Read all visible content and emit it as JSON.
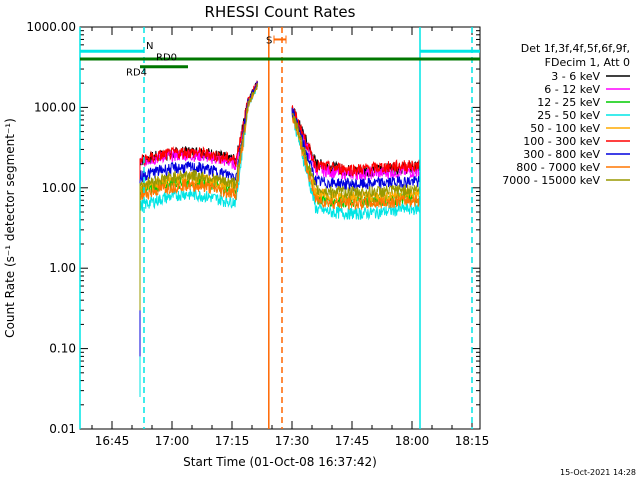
{
  "chart_data": {
    "type": "line",
    "title": "RHESSI Count Rates",
    "xlabel": "Start Time (01-Oct-08 16:37:42)",
    "ylabel": "Count Rate (s⁻¹ detector segment⁻¹)",
    "y_scale": "log",
    "ylim": [
      0.01,
      1000
    ],
    "xlim_minutes": [
      -1,
      99
    ],
    "y_ticks": [
      {
        "v": 1000,
        "label": "1000.00"
      },
      {
        "v": 100,
        "label": "100.00"
      },
      {
        "v": 10,
        "label": "10.00"
      },
      {
        "v": 1,
        "label": "1.00"
      },
      {
        "v": 0.1,
        "label": "0.10"
      },
      {
        "v": 0.01,
        "label": "0.01"
      }
    ],
    "x_ticks": [
      {
        "t": 7,
        "label": "16:45"
      },
      {
        "t": 22,
        "label": "17:00"
      },
      {
        "t": 37,
        "label": "17:15"
      },
      {
        "t": 52,
        "label": "17:30"
      },
      {
        "t": 67,
        "label": "17:45"
      },
      {
        "t": 82,
        "label": "18:00"
      },
      {
        "t": 97,
        "label": "18:15"
      }
    ],
    "legend": {
      "placement": "right",
      "header": [
        "Det 1f,3f,4f,5f,6f,9f,",
        "FDecim 1, Att 0"
      ]
    },
    "series": [
      {
        "name": "3 - 6 keV",
        "color": "#000000",
        "pre": [
          [
            14,
            22
          ],
          [
            20,
            26
          ],
          [
            25,
            28
          ],
          [
            30,
            28
          ],
          [
            35,
            24
          ],
          [
            38,
            22
          ]
        ],
        "post": [
          [
            58,
            20
          ],
          [
            62,
            18
          ],
          [
            68,
            16
          ],
          [
            74,
            17
          ],
          [
            80,
            18
          ],
          [
            84,
            18
          ]
        ],
        "start": 0.3,
        "peak": 220
      },
      {
        "name": "6 - 12 keV",
        "color": "#ff00ff",
        "pre": [
          [
            14,
            21
          ],
          [
            20,
            25
          ],
          [
            25,
            26
          ],
          [
            30,
            25
          ],
          [
            35,
            22
          ],
          [
            38,
            20
          ]
        ],
        "post": [
          [
            58,
            17
          ],
          [
            62,
            16
          ],
          [
            68,
            15
          ],
          [
            74,
            15.5
          ],
          [
            80,
            16
          ],
          [
            84,
            16
          ]
        ],
        "start": 0.3,
        "peak": 210
      },
      {
        "name": "12 - 25 keV",
        "color": "#00cc00",
        "pre": [
          [
            14,
            9
          ],
          [
            20,
            11
          ],
          [
            25,
            12
          ],
          [
            30,
            12
          ],
          [
            35,
            10
          ],
          [
            38,
            9.5
          ]
        ],
        "post": [
          [
            58,
            7.5
          ],
          [
            62,
            7
          ],
          [
            68,
            6.8
          ],
          [
            74,
            7
          ],
          [
            80,
            7.5
          ],
          [
            84,
            7.5
          ]
        ],
        "start": 0.3,
        "peak": 200
      },
      {
        "name": "25 - 50 keV",
        "color": "#00e5e5",
        "pre": [
          [
            14,
            6
          ],
          [
            20,
            7.5
          ],
          [
            25,
            8.5
          ],
          [
            30,
            8
          ],
          [
            35,
            7
          ],
          [
            38,
            6.8
          ]
        ],
        "post": [
          [
            58,
            5.5
          ],
          [
            62,
            5
          ],
          [
            68,
            4.8
          ],
          [
            74,
            5
          ],
          [
            80,
            5.5
          ],
          [
            84,
            5.5
          ]
        ],
        "start": 0.025,
        "peak": 190
      },
      {
        "name": "50 - 100 keV",
        "color": "#ffaa00",
        "pre": [
          [
            14,
            10
          ],
          [
            20,
            12
          ],
          [
            25,
            13.5
          ],
          [
            30,
            13
          ],
          [
            35,
            11
          ],
          [
            38,
            10.5
          ]
        ],
        "post": [
          [
            58,
            8.5
          ],
          [
            62,
            8
          ],
          [
            68,
            7.8
          ],
          [
            74,
            8
          ],
          [
            80,
            8.5
          ],
          [
            84,
            8.5
          ]
        ],
        "start": 0.3,
        "peak": 200
      },
      {
        "name": "100 - 300 keV",
        "color": "#ff0000",
        "pre": [
          [
            14,
            22
          ],
          [
            20,
            26
          ],
          [
            25,
            28
          ],
          [
            30,
            27
          ],
          [
            35,
            24
          ],
          [
            38,
            22
          ]
        ],
        "post": [
          [
            58,
            19
          ],
          [
            62,
            18
          ],
          [
            68,
            17
          ],
          [
            74,
            18
          ],
          [
            80,
            19
          ],
          [
            84,
            19
          ]
        ],
        "start": 0.3,
        "peak": 220
      },
      {
        "name": "300 - 800 keV",
        "color": "#0000dd",
        "pre": [
          [
            14,
            14
          ],
          [
            20,
            17
          ],
          [
            25,
            18
          ],
          [
            30,
            17.5
          ],
          [
            35,
            15
          ],
          [
            38,
            14
          ]
        ],
        "post": [
          [
            58,
            12
          ],
          [
            62,
            11.5
          ],
          [
            68,
            11
          ],
          [
            74,
            11.5
          ],
          [
            80,
            12
          ],
          [
            84,
            12
          ]
        ],
        "start": 0.08,
        "peak": 210
      },
      {
        "name": "800 - 7000 keV",
        "color": "#ff7700",
        "pre": [
          [
            14,
            8
          ],
          [
            20,
            10
          ],
          [
            25,
            11
          ],
          [
            30,
            10.5
          ],
          [
            35,
            9
          ],
          [
            38,
            8.6
          ]
        ],
        "post": [
          [
            58,
            7
          ],
          [
            62,
            6.6
          ],
          [
            68,
            6.4
          ],
          [
            74,
            6.6
          ],
          [
            80,
            7
          ],
          [
            84,
            7
          ]
        ],
        "start": 0.3,
        "peak": 190
      },
      {
        "name": "7000 - 15000 keV",
        "color": "#999900",
        "pre": [
          [
            14,
            11
          ],
          [
            20,
            13
          ],
          [
            25,
            14.5
          ],
          [
            30,
            14
          ],
          [
            35,
            12
          ],
          [
            38,
            11.5
          ]
        ],
        "post": [
          [
            58,
            9.5
          ],
          [
            62,
            9
          ],
          [
            68,
            8.8
          ],
          [
            74,
            9
          ],
          [
            80,
            9.5
          ],
          [
            84,
            9.5
          ]
        ],
        "start": 0.3,
        "peak": 200
      }
    ],
    "attenuator_bars": [
      {
        "t0": -1,
        "t1": 15,
        "v": 500,
        "color": "#00e5e5",
        "label": "N",
        "label_t": 15.5,
        "label_v": 600
      },
      {
        "t0": 84,
        "t1": 99,
        "v": 500,
        "color": "#00e5e5",
        "label": "",
        "label_t": 0,
        "label_v": 0
      },
      {
        "t0": -1,
        "t1": 99,
        "v": 400,
        "color": "#007700",
        "label": "RD0",
        "label_t": 18,
        "label_v": 430
      },
      {
        "t0": 14,
        "t1": 26,
        "v": 320,
        "color": "#007700",
        "label": "RD4",
        "label_t": 10.5,
        "label_v": 280
      }
    ],
    "saa_bar": {
      "t0": 47.5,
      "t1": 50.5,
      "v": 700,
      "color": "#ff6600",
      "label": "S",
      "label_t": 45.5,
      "label_v": 700
    },
    "vlines": [
      {
        "t": -1,
        "color": "#00e5e5",
        "style": "solid"
      },
      {
        "t": 15,
        "color": "#00e5e5",
        "style": "dashed"
      },
      {
        "t": 84,
        "color": "#00e5e5",
        "style": "solid"
      },
      {
        "t": 97,
        "color": "#00e5e5",
        "style": "dashed"
      },
      {
        "t": 46.2,
        "color": "#ff6600",
        "style": "solid"
      },
      {
        "t": 49.5,
        "color": "#ff6600",
        "style": "dashed"
      }
    ],
    "gap": [
      43.5,
      52
    ]
  },
  "footer_date": "15-Oct-2021 14:28"
}
